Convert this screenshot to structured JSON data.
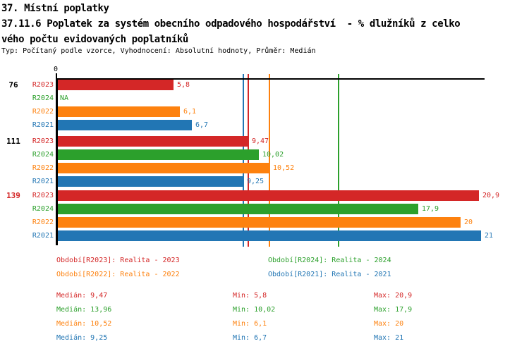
{
  "header": {
    "title_line1": "37. Místní poplatky",
    "title_line2": "37.11.6 Poplatek za systém obecního odpadového hospodářství  - % dlužníků z celko",
    "title_line3": "vého počtu evidovaných poplatníků",
    "meta_line": "Typ: Počítaný podle vzorce, Vyhodnocení: Absolutní hodnoty, Průměr: Medián"
  },
  "colors": {
    "R2023": "#d42727",
    "R2024": "#2ca02c",
    "R2022": "#fd810e",
    "R2021": "#2276b4",
    "axis": "#000000",
    "group_label_default": "#000000",
    "group_label_highlight": "#d42727"
  },
  "chart_data": {
    "type": "bar",
    "orientation": "horizontal",
    "xlabel": "",
    "ylabel": "",
    "xlim": [
      0,
      21.2
    ],
    "axis_zero_label": "0",
    "series_order": [
      "R2023",
      "R2024",
      "R2022",
      "R2021"
    ],
    "groups": [
      {
        "label": "76",
        "highlight": false,
        "bars": [
          {
            "series": "R2023",
            "value": 5.8,
            "display": "5,8"
          },
          {
            "series": "R2024",
            "value": null,
            "display": "NA"
          },
          {
            "series": "R2022",
            "value": 6.1,
            "display": "6,1"
          },
          {
            "series": "R2021",
            "value": 6.7,
            "display": "6,7"
          }
        ]
      },
      {
        "label": "111",
        "highlight": false,
        "bars": [
          {
            "series": "R2023",
            "value": 9.47,
            "display": "9,47"
          },
          {
            "series": "R2024",
            "value": 10.02,
            "display": "10,02"
          },
          {
            "series": "R2022",
            "value": 10.52,
            "display": "10,52"
          },
          {
            "series": "R2021",
            "value": 9.25,
            "display": "9,25"
          }
        ]
      },
      {
        "label": "139",
        "highlight": true,
        "bars": [
          {
            "series": "R2023",
            "value": 20.9,
            "display": "20,9"
          },
          {
            "series": "R2024",
            "value": 17.9,
            "display": "17,9"
          },
          {
            "series": "R2022",
            "value": 20,
            "display": "20"
          },
          {
            "series": "R2021",
            "value": 21,
            "display": "21"
          }
        ]
      }
    ],
    "median_lines": [
      {
        "series": "R2021",
        "value": 9.25
      },
      {
        "series": "R2023",
        "value": 9.47
      },
      {
        "series": "R2022",
        "value": 10.52
      },
      {
        "series": "R2024",
        "value": 13.96
      }
    ]
  },
  "legend": {
    "items": [
      {
        "series": "R2023",
        "text": "Období[R2023]: Realita - 2023"
      },
      {
        "series": "R2024",
        "text": "Období[R2024]: Realita - 2024"
      },
      {
        "series": "R2022",
        "text": "Období[R2022]: Realita - 2022"
      },
      {
        "series": "R2021",
        "text": "Období[R2021]: Realita - 2021"
      }
    ]
  },
  "stats": {
    "rows": [
      {
        "series": "R2023",
        "median": "Medián: 9,47",
        "min": "Min: 5,8",
        "max": "Max: 20,9"
      },
      {
        "series": "R2024",
        "median": "Medián: 13,96",
        "min": "Min: 10,02",
        "max": "Max: 17,9"
      },
      {
        "series": "R2022",
        "median": "Medián: 10,52",
        "min": "Min: 6,1",
        "max": "Max: 20"
      },
      {
        "series": "R2021",
        "median": "Medián: 9,25",
        "min": "Min: 6,7",
        "max": "Max: 21"
      }
    ]
  }
}
